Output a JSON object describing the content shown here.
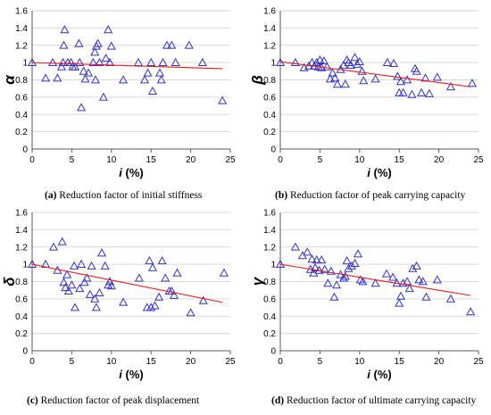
{
  "figure": {
    "colors": {
      "marker": "#3333cc",
      "trend": "#e8191a",
      "grid": "#d9d9d9",
      "axis": "#595959",
      "text": "#000000"
    },
    "panels": [
      {
        "caption_letter": "(a)",
        "caption_text": " Reduction factor of initial stiffness"
      },
      {
        "caption_letter": "(b)",
        "caption_text": " Reduction factor of peak carrying capacity"
      },
      {
        "caption_letter": "(c)",
        "caption_text": " Reduction factor of peak displacement"
      },
      {
        "caption_letter": "(d)",
        "caption_text": " Reduction factor of ultimate carrying capacity"
      }
    ]
  },
  "chart_data": [
    {
      "type": "scatter",
      "title": "",
      "xlabel": "i (%)",
      "ylabel": "α",
      "xlim": [
        0,
        25
      ],
      "ylim": [
        0,
        1.6
      ],
      "x_ticks": [
        "0",
        "5",
        "10",
        "15",
        "20",
        "25"
      ],
      "y_ticks": [
        "0",
        "0.2",
        "0.4",
        "0.6",
        "0.8",
        "1",
        "1.2",
        "1.4",
        "1.6"
      ],
      "grid": "horizontal",
      "marker": "open-triangle",
      "points": [
        [
          0,
          1.0
        ],
        [
          1.7,
          0.82
        ],
        [
          2.6,
          1.0
        ],
        [
          3.2,
          0.82
        ],
        [
          3.7,
          0.95
        ],
        [
          3.9,
          1.0
        ],
        [
          4.0,
          1.2
        ],
        [
          4.1,
          1.38
        ],
        [
          4.5,
          1.0
        ],
        [
          4.9,
          1.0
        ],
        [
          5.1,
          0.95
        ],
        [
          5.4,
          0.95
        ],
        [
          5.9,
          1.22
        ],
        [
          6.0,
          1.0
        ],
        [
          6.2,
          0.48
        ],
        [
          6.5,
          0.9
        ],
        [
          6.7,
          0.81
        ],
        [
          7.1,
          0.88
        ],
        [
          7.7,
          1.0
        ],
        [
          7.9,
          1.12
        ],
        [
          8.0,
          0.8
        ],
        [
          8.1,
          1.19
        ],
        [
          8.3,
          1.22
        ],
        [
          8.5,
          1.0
        ],
        [
          9.0,
          0.6
        ],
        [
          9.3,
          1.05
        ],
        [
          9.6,
          1.38
        ],
        [
          9.8,
          1.0
        ],
        [
          10.0,
          1.19
        ],
        [
          11.5,
          0.8
        ],
        [
          13.4,
          1.0
        ],
        [
          14.2,
          0.8
        ],
        [
          14.6,
          0.88
        ],
        [
          15.0,
          1.0
        ],
        [
          15.2,
          0.67
        ],
        [
          16.1,
          0.88
        ],
        [
          16.3,
          0.8
        ],
        [
          16.5,
          1.0
        ],
        [
          17.0,
          1.2
        ],
        [
          17.6,
          1.2
        ],
        [
          18.1,
          1.0
        ],
        [
          19.8,
          1.2
        ],
        [
          21.5,
          1.0
        ],
        [
          24.0,
          0.56
        ]
      ],
      "trendline": {
        "x": [
          0,
          24
        ],
        "y": [
          1.0,
          0.93
        ]
      }
    },
    {
      "type": "scatter",
      "title": "",
      "xlabel": "i (%)",
      "ylabel": "β",
      "xlim": [
        0,
        25
      ],
      "ylim": [
        0,
        1.6
      ],
      "x_ticks": [
        "0",
        "5",
        "10",
        "15",
        "20",
        "25"
      ],
      "y_ticks": [
        "0",
        "0.2",
        "0.4",
        "0.6",
        "0.8",
        "1",
        "1.2",
        "1.4",
        "1.6"
      ],
      "grid": "horizontal",
      "marker": "open-triangle",
      "points": [
        [
          0,
          1.0
        ],
        [
          1.9,
          1.0
        ],
        [
          3.0,
          0.94
        ],
        [
          3.6,
          0.96
        ],
        [
          4.0,
          1.0
        ],
        [
          4.3,
          0.96
        ],
        [
          4.6,
          1.0
        ],
        [
          4.8,
          0.95
        ],
        [
          5.0,
          1.03
        ],
        [
          5.2,
          0.94
        ],
        [
          5.5,
          1.02
        ],
        [
          5.9,
          0.95
        ],
        [
          6.3,
          0.81
        ],
        [
          6.6,
          0.88
        ],
        [
          6.9,
          0.82
        ],
        [
          7.2,
          0.75
        ],
        [
          7.6,
          0.92
        ],
        [
          8.0,
          0.97
        ],
        [
          8.2,
          0.75
        ],
        [
          8.4,
          1.03
        ],
        [
          8.6,
          1.0
        ],
        [
          8.9,
          0.97
        ],
        [
          9.4,
          1.06
        ],
        [
          9.7,
          0.98
        ],
        [
          10.0,
          1.01
        ],
        [
          10.3,
          0.9
        ],
        [
          10.5,
          0.79
        ],
        [
          12.0,
          0.81
        ],
        [
          13.5,
          1.0
        ],
        [
          14.3,
          0.99
        ],
        [
          14.8,
          0.84
        ],
        [
          15.0,
          0.65
        ],
        [
          15.2,
          0.78
        ],
        [
          15.5,
          0.65
        ],
        [
          16.0,
          0.8
        ],
        [
          16.6,
          0.63
        ],
        [
          17.0,
          0.93
        ],
        [
          17.2,
          0.9
        ],
        [
          17.8,
          0.65
        ],
        [
          18.3,
          0.82
        ],
        [
          18.8,
          0.64
        ],
        [
          19.8,
          0.83
        ],
        [
          21.5,
          0.72
        ],
        [
          24.2,
          0.76
        ]
      ],
      "trendline": {
        "x": [
          0,
          24
        ],
        "y": [
          1.01,
          0.72
        ]
      }
    },
    {
      "type": "scatter",
      "title": "",
      "xlabel": "i (%)",
      "ylabel": "δ",
      "xlim": [
        0,
        25
      ],
      "ylim": [
        0,
        1.6
      ],
      "x_ticks": [
        "0",
        "5",
        "10",
        "15",
        "20",
        "25"
      ],
      "y_ticks": [
        "0",
        "0.2",
        "0.4",
        "0.6",
        "0.8",
        "1",
        "1.2",
        "1.4",
        "1.6"
      ],
      "grid": "horizontal",
      "marker": "open-triangle",
      "points": [
        [
          0,
          1.0
        ],
        [
          1.7,
          1.0
        ],
        [
          2.7,
          1.2
        ],
        [
          3.2,
          0.93
        ],
        [
          3.8,
          1.26
        ],
        [
          4.0,
          0.79
        ],
        [
          4.2,
          0.73
        ],
        [
          4.4,
          0.88
        ],
        [
          4.6,
          0.69
        ],
        [
          5.0,
          0.76
        ],
        [
          5.3,
          0.98
        ],
        [
          5.4,
          0.5
        ],
        [
          6.0,
          0.72
        ],
        [
          6.2,
          1.0
        ],
        [
          6.6,
          0.79
        ],
        [
          6.9,
          0.84
        ],
        [
          7.3,
          0.65
        ],
        [
          7.5,
          0.98
        ],
        [
          7.9,
          0.6
        ],
        [
          8.1,
          0.5
        ],
        [
          8.5,
          0.67
        ],
        [
          8.8,
          1.13
        ],
        [
          9.2,
          0.98
        ],
        [
          9.6,
          0.76
        ],
        [
          9.8,
          0.8
        ],
        [
          10.0,
          0.75
        ],
        [
          11.5,
          0.56
        ],
        [
          13.5,
          0.84
        ],
        [
          14.5,
          0.5
        ],
        [
          14.8,
          1.04
        ],
        [
          15.0,
          0.5
        ],
        [
          15.2,
          0.96
        ],
        [
          15.5,
          0.52
        ],
        [
          16.0,
          0.62
        ],
        [
          16.4,
          1.04
        ],
        [
          16.8,
          0.84
        ],
        [
          17.3,
          0.69
        ],
        [
          17.6,
          0.69
        ],
        [
          17.9,
          0.64
        ],
        [
          18.3,
          0.9
        ],
        [
          20.0,
          0.44
        ],
        [
          21.6,
          0.58
        ],
        [
          24.2,
          0.9
        ]
      ],
      "trendline": {
        "x": [
          0,
          24
        ],
        "y": [
          1.0,
          0.56
        ]
      }
    },
    {
      "type": "scatter",
      "title": "",
      "xlabel": "i (%)",
      "ylabel": "γ",
      "xlim": [
        0,
        25
      ],
      "ylim": [
        0,
        1.6
      ],
      "x_ticks": [
        "0",
        "5",
        "10",
        "15",
        "20",
        "25"
      ],
      "y_ticks": [
        "0",
        "0.2",
        "0.4",
        "0.6",
        "0.8",
        "1",
        "1.2",
        "1.4",
        "1.6"
      ],
      "grid": "horizontal",
      "marker": "open-triangle",
      "points": [
        [
          0,
          1.0
        ],
        [
          1.9,
          1.2
        ],
        [
          2.8,
          1.1
        ],
        [
          3.4,
          1.14
        ],
        [
          3.8,
          0.94
        ],
        [
          4.0,
          1.06
        ],
        [
          4.2,
          0.9
        ],
        [
          4.4,
          0.96
        ],
        [
          4.6,
          1.05
        ],
        [
          4.9,
          0.93
        ],
        [
          5.2,
          1.05
        ],
        [
          5.6,
          0.94
        ],
        [
          6.0,
          0.78
        ],
        [
          6.4,
          0.92
        ],
        [
          6.8,
          0.62
        ],
        [
          7.1,
          0.76
        ],
        [
          7.6,
          0.88
        ],
        [
          8.0,
          0.84
        ],
        [
          8.2,
          0.86
        ],
        [
          8.4,
          1.04
        ],
        [
          8.6,
          0.95
        ],
        [
          9.0,
          0.98
        ],
        [
          9.4,
          1.01
        ],
        [
          9.8,
          1.12
        ],
        [
          10.1,
          0.82
        ],
        [
          10.4,
          0.8
        ],
        [
          12.0,
          0.78
        ],
        [
          13.4,
          0.89
        ],
        [
          14.2,
          0.85
        ],
        [
          14.7,
          0.78
        ],
        [
          15.0,
          0.55
        ],
        [
          15.2,
          0.63
        ],
        [
          15.5,
          0.78
        ],
        [
          16.0,
          0.8
        ],
        [
          16.3,
          0.72
        ],
        [
          16.7,
          0.95
        ],
        [
          17.2,
          0.98
        ],
        [
          17.5,
          0.82
        ],
        [
          18.0,
          0.8
        ],
        [
          18.4,
          0.62
        ],
        [
          19.8,
          0.82
        ],
        [
          21.5,
          0.6
        ],
        [
          24.0,
          0.45
        ]
      ],
      "trendline": {
        "x": [
          0,
          24
        ],
        "y": [
          1.0,
          0.64
        ]
      }
    }
  ]
}
